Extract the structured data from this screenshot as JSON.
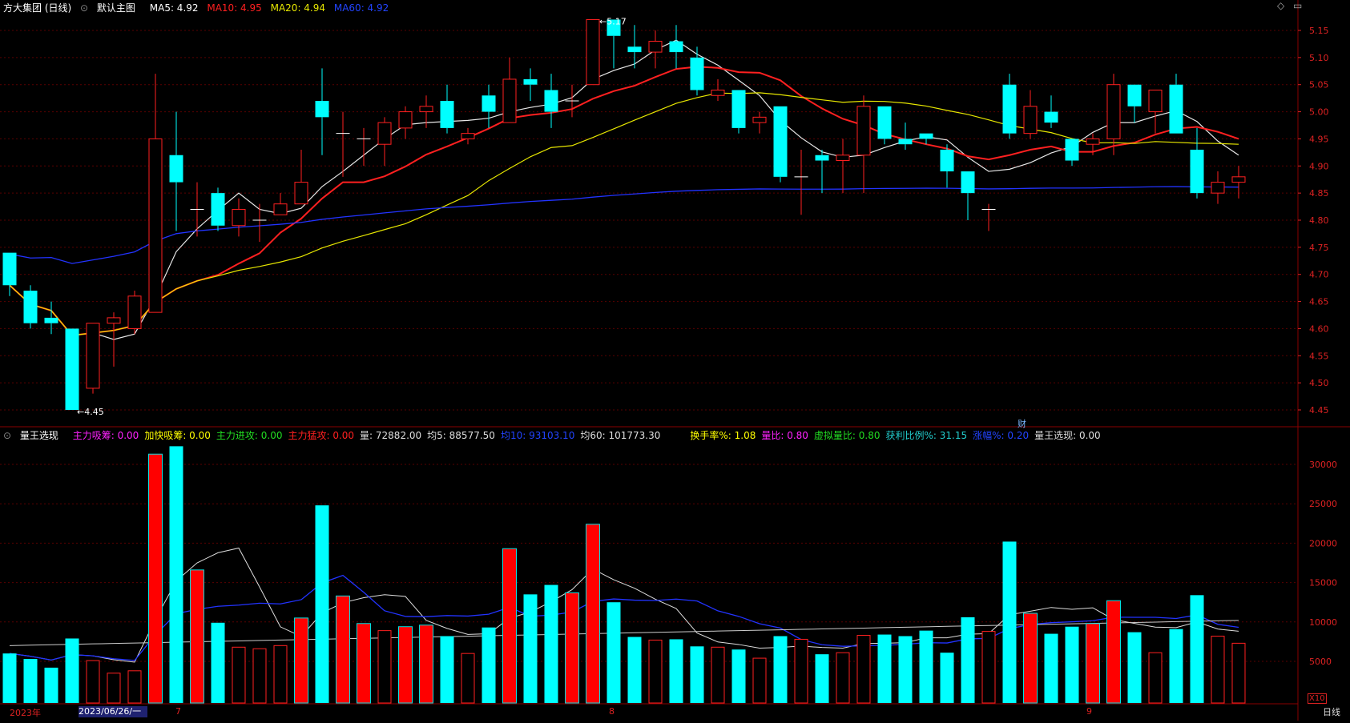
{
  "header": {
    "title": "方大集团 (日线)",
    "main_label": "默认主图",
    "ma": [
      {
        "label": "MA5: 4.92",
        "color": "#ffffff"
      },
      {
        "label": "MA10: 4.95",
        "color": "#ff2020"
      },
      {
        "label": "MA20: 4.94",
        "color": "#e6e600"
      },
      {
        "label": "MA60: 4.92",
        "color": "#2244ff"
      }
    ]
  },
  "volume_header": {
    "title": "量王选现",
    "items": [
      {
        "label": "主力吸筹: 0.00",
        "color": "#ff22ff"
      },
      {
        "label": "加快吸筹: 0.00",
        "color": "#ffff00"
      },
      {
        "label": "主力进攻: 0.00",
        "color": "#22dd22"
      },
      {
        "label": "主力猛攻: 0.00",
        "color": "#ff2020"
      },
      {
        "label": "量: 72882.00",
        "color": "#dddddd"
      },
      {
        "label": "均5: 88577.50",
        "color": "#dddddd"
      },
      {
        "label": "均10: 93103.10",
        "color": "#2244ff"
      },
      {
        "label": "均60: 101773.30",
        "color": "#dddddd"
      },
      {
        "label": "换手率%: 1.08",
        "color": "#ffff00"
      },
      {
        "label": "量比: 0.80",
        "color": "#ff22ff"
      },
      {
        "label": "虚拟量比: 0.80",
        "color": "#22dd22"
      },
      {
        "label": "获利比例%: 31.15",
        "color": "#22cccc"
      },
      {
        "label": "涨幅%: 0.20",
        "color": "#2244ff"
      },
      {
        "label": "量王选现: 0.00",
        "color": "#dddddd"
      }
    ]
  },
  "price_axis": [
    "5.15",
    "5.10",
    "5.05",
    "5.00",
    "4.95",
    "4.90",
    "4.85",
    "4.80",
    "4.75",
    "4.70",
    "4.65",
    "4.60",
    "4.55",
    "4.50",
    "4.45"
  ],
  "volume_axis": [
    "30000",
    "25000",
    "20000",
    "15000",
    "10000",
    "5000"
  ],
  "annotations": {
    "high": "5.17",
    "low": "4.45",
    "fin_marker": "财"
  },
  "x_labels": {
    "year": "2023年",
    "cursor_date": "2023/06/26/一",
    "m7": "7",
    "m8": "8",
    "m9": "9"
  },
  "period_label": "日线",
  "multiplier": "X10",
  "colors": {
    "up": "#ff2020",
    "down": "#00ffff",
    "bg": "#000000",
    "grid": "#5a0000"
  },
  "chart_data": {
    "type": "candlestick",
    "candles": [
      [
        4.74,
        4.68,
        4.74,
        4.66
      ],
      [
        4.67,
        4.61,
        4.68,
        4.6
      ],
      [
        4.62,
        4.61,
        4.65,
        4.59
      ],
      [
        4.6,
        4.45,
        4.6,
        4.45
      ],
      [
        4.49,
        4.61,
        4.61,
        4.48
      ],
      [
        4.61,
        4.62,
        4.63,
        4.53
      ],
      [
        4.6,
        4.66,
        4.67,
        4.59
      ],
      [
        4.63,
        4.95,
        5.07,
        4.63
      ],
      [
        4.92,
        4.87,
        5.0,
        4.78
      ],
      [
        4.82,
        4.82,
        4.87,
        4.77
      ],
      [
        4.85,
        4.79,
        4.86,
        4.78
      ],
      [
        4.79,
        4.82,
        4.84,
        4.77
      ],
      [
        4.8,
        4.8,
        4.83,
        4.76
      ],
      [
        4.81,
        4.83,
        4.85,
        4.81
      ],
      [
        4.83,
        4.87,
        4.93,
        4.83
      ],
      [
        5.02,
        4.99,
        5.08,
        4.92
      ],
      [
        4.96,
        4.96,
        5.0,
        4.88
      ],
      [
        4.95,
        4.95,
        4.97,
        4.9
      ],
      [
        4.94,
        4.98,
        4.99,
        4.9
      ],
      [
        4.97,
        5.0,
        5.01,
        4.95
      ],
      [
        5.0,
        5.01,
        5.03,
        4.97
      ],
      [
        5.02,
        4.97,
        5.05,
        4.96
      ],
      [
        4.95,
        4.96,
        4.97,
        4.94
      ],
      [
        5.03,
        5.0,
        5.05,
        4.97
      ],
      [
        4.98,
        5.06,
        5.1,
        4.98
      ],
      [
        5.06,
        5.05,
        5.08,
        5.02
      ],
      [
        5.04,
        5.0,
        5.07,
        4.97
      ],
      [
        5.02,
        5.02,
        5.05,
        4.99
      ],
      [
        5.05,
        5.17,
        5.17,
        5.05
      ],
      [
        5.17,
        5.14,
        5.17,
        5.08
      ],
      [
        5.12,
        5.11,
        5.16,
        5.08
      ],
      [
        5.11,
        5.13,
        5.15,
        5.08
      ],
      [
        5.13,
        5.11,
        5.16,
        5.08
      ],
      [
        5.1,
        5.04,
        5.12,
        5.03
      ],
      [
        5.03,
        5.04,
        5.06,
        5.02
      ],
      [
        5.04,
        4.97,
        5.04,
        4.96
      ],
      [
        4.98,
        4.99,
        5.0,
        4.96
      ],
      [
        5.01,
        4.88,
        5.01,
        4.87
      ],
      [
        4.88,
        4.88,
        4.93,
        4.81
      ],
      [
        4.92,
        4.91,
        4.93,
        4.85
      ],
      [
        4.91,
        4.92,
        4.95,
        4.85
      ],
      [
        4.92,
        5.01,
        5.03,
        4.85
      ],
      [
        5.01,
        4.95,
        5.01,
        4.94
      ],
      [
        4.95,
        4.94,
        4.98,
        4.93
      ],
      [
        4.96,
        4.95,
        4.96,
        4.94
      ],
      [
        4.93,
        4.89,
        4.94,
        4.86
      ],
      [
        4.89,
        4.85,
        4.89,
        4.8
      ],
      [
        4.82,
        4.82,
        4.83,
        4.78
      ],
      [
        5.05,
        4.96,
        5.07,
        4.95
      ],
      [
        4.96,
        5.01,
        5.04,
        4.95
      ],
      [
        5.0,
        4.98,
        5.03,
        4.97
      ],
      [
        4.95,
        4.91,
        4.95,
        4.9
      ],
      [
        4.94,
        4.95,
        4.96,
        4.92
      ],
      [
        4.95,
        5.05,
        5.07,
        4.92
      ],
      [
        5.05,
        5.01,
        5.05,
        4.98
      ],
      [
        5.0,
        5.04,
        5.04,
        4.96
      ],
      [
        5.05,
        4.96,
        5.07,
        4.96
      ],
      [
        4.93,
        4.85,
        4.97,
        4.84
      ],
      [
        4.85,
        4.87,
        4.89,
        4.83
      ],
      [
        4.87,
        4.88,
        4.9,
        4.84
      ]
    ],
    "volume": [
      6000,
      5300,
      4200,
      7900,
      5100,
      3500,
      3800,
      31300,
      32300,
      16600,
      9900,
      6800,
      6600,
      7000,
      10500,
      24800,
      13300,
      9800,
      8900,
      9400,
      9600,
      8200,
      6000,
      9300,
      19300,
      13500,
      14700,
      13700,
      22400,
      12500,
      8100,
      7700,
      7800,
      6900,
      6800,
      6500,
      5400,
      8200,
      7800,
      5900,
      6100,
      8300,
      8400,
      8200,
      8900,
      6100,
      10600,
      8800,
      20200,
      11100,
      8500,
      9400,
      9800,
      12700,
      8700,
      6100,
      9100,
      13400,
      8200,
      7300
    ]
  }
}
